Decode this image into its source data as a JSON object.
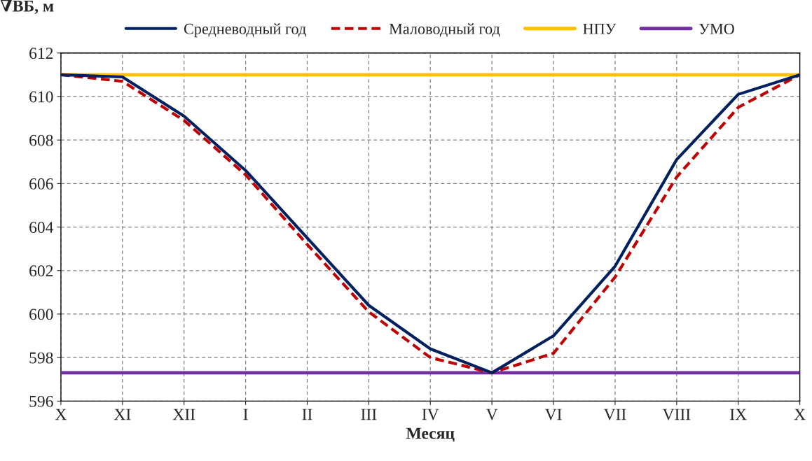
{
  "chart_data": {
    "type": "line",
    "xlabel": "Месяц",
    "ylabel": "∇ВБ, м",
    "categories": [
      "X",
      "XI",
      "XII",
      "I",
      "II",
      "III",
      "IV",
      "V",
      "VI",
      "VII",
      "VIII",
      "IX",
      "X"
    ],
    "series": [
      {
        "name": "Средневодный год",
        "color": "#002060",
        "line_style": "solid",
        "values": [
          611,
          610.9,
          609.1,
          606.6,
          603.5,
          600.4,
          598.4,
          597.3,
          599.0,
          602.2,
          607.1,
          610.1,
          611
        ]
      },
      {
        "name": "Маловодный год",
        "color": "#c00000",
        "line_style": "dashed",
        "values": [
          611,
          610.7,
          608.9,
          606.4,
          603.2,
          600.1,
          598.0,
          597.3,
          598.2,
          601.7,
          606.3,
          609.5,
          611
        ]
      }
    ],
    "ref_lines": [
      {
        "axis": "y",
        "value": 611,
        "label": "НПУ",
        "color": "#ffc000",
        "line_style": "solid"
      },
      {
        "axis": "y",
        "value": 597.3,
        "label": "УМО",
        "color": "#7030a0",
        "line_style": "solid"
      }
    ],
    "ylim": [
      596,
      612
    ],
    "yticks": [
      596,
      598,
      600,
      602,
      604,
      606,
      608,
      610,
      612
    ],
    "grid": true,
    "legend": "top",
    "marker": "none"
  }
}
